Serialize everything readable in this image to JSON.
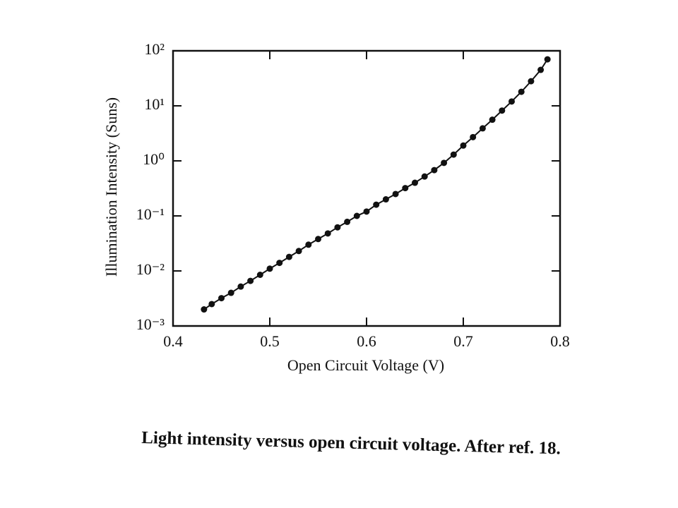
{
  "chart_data": {
    "type": "scatter",
    "x_label": "Open Circuit Voltage (V)",
    "y_label": "Illumination Intensity (Suns)",
    "caption": "Light intensity versus open circuit voltage. After ref. 18.",
    "color": "#111111",
    "log_y": true,
    "connect_line": true,
    "xlim": [
      0.4,
      0.8
    ],
    "xticks": [
      0.4,
      0.5,
      0.6,
      0.7,
      0.8
    ],
    "ylim": [
      0.001,
      100
    ],
    "yticks": [
      {
        "value": 0.001,
        "label": "10⁻³"
      },
      {
        "value": 0.01,
        "label": "10⁻²"
      },
      {
        "value": 0.1,
        "label": "10⁻¹"
      },
      {
        "value": 1,
        "label": "10⁰"
      },
      {
        "value": 10,
        "label": "10¹"
      },
      {
        "value": 100,
        "label": "10²"
      }
    ],
    "x": [
      0.432,
      0.44,
      0.45,
      0.46,
      0.47,
      0.48,
      0.49,
      0.5,
      0.51,
      0.52,
      0.53,
      0.54,
      0.55,
      0.56,
      0.57,
      0.58,
      0.59,
      0.6,
      0.61,
      0.62,
      0.63,
      0.64,
      0.65,
      0.66,
      0.67,
      0.68,
      0.69,
      0.7,
      0.71,
      0.72,
      0.73,
      0.74,
      0.75,
      0.76,
      0.77,
      0.78,
      0.787
    ],
    "values": [
      0.002,
      0.0025,
      0.0032,
      0.004,
      0.0052,
      0.0066,
      0.0085,
      0.011,
      0.014,
      0.018,
      0.023,
      0.03,
      0.038,
      0.048,
      0.062,
      0.078,
      0.1,
      0.12,
      0.16,
      0.2,
      0.25,
      0.32,
      0.4,
      0.52,
      0.68,
      0.92,
      1.3,
      1.9,
      2.7,
      3.9,
      5.6,
      8.2,
      12,
      18,
      28,
      45,
      70
    ]
  }
}
